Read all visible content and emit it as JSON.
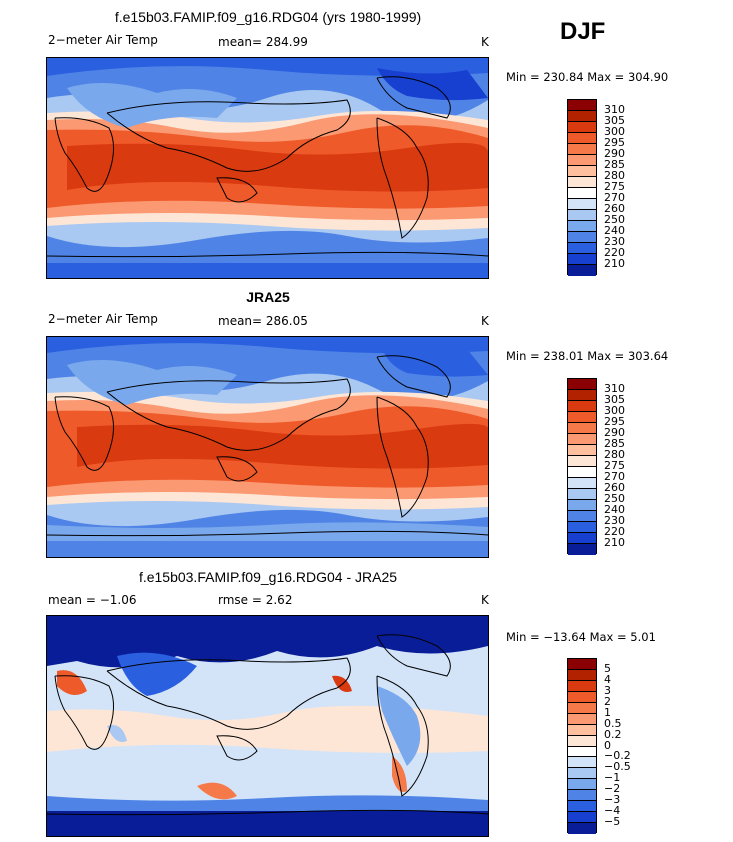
{
  "season": "DJF",
  "panels": [
    {
      "title": "f.e15b03.FAMIP.f09_g16.RDG04 (yrs 1980-1999)",
      "variable": "2−meter Air Temp",
      "stat": "mean=  284.99",
      "stat2": "",
      "units": "K",
      "minmax": "Min = 230.84 Max = 304.90",
      "scale": "abs"
    },
    {
      "title": "JRA25",
      "variable": "2−meter Air Temp",
      "stat": "mean=  286.05",
      "stat2": "",
      "units": "K",
      "minmax": "Min = 238.01 Max = 303.64",
      "scale": "abs"
    },
    {
      "title": "f.e15b03.FAMIP.f09_g16.RDG04 - JRA25",
      "variable": "",
      "stat": "mean =   −1.06",
      "stat2": "rmse =    2.62",
      "units": "K",
      "minmax": "Min = −13.64 Max =    5.01",
      "scale": "diff"
    }
  ],
  "colorbars": {
    "abs": {
      "labels": [
        "310",
        "305",
        "300",
        "295",
        "290",
        "285",
        "280",
        "275",
        "270",
        "260",
        "250",
        "240",
        "230",
        "220",
        "210"
      ],
      "colors": [
        "#8b0000",
        "#b22200",
        "#d93a10",
        "#ef5a2a",
        "#f6794a",
        "#fb9a72",
        "#fdbf9d",
        "#fde6d6",
        "#ffffff",
        "#d4e4f8",
        "#a9c8f2",
        "#7aa8ec",
        "#4f84e6",
        "#2a5fe0",
        "#173fd0",
        "#0a1d98"
      ]
    },
    "diff": {
      "labels": [
        "5",
        "4",
        "3",
        "2",
        "1",
        "0.5",
        "0.2",
        "0",
        "−0.2",
        "−0.5",
        "−1",
        "−2",
        "−3",
        "−4",
        "−5"
      ],
      "colors": [
        "#8b0000",
        "#b22200",
        "#d93a10",
        "#ef5a2a",
        "#f6794a",
        "#fb9a72",
        "#fdbf9d",
        "#fde6d6",
        "#ffffff",
        "#d4e4f8",
        "#a9c8f2",
        "#7aa8ec",
        "#4f84e6",
        "#2a5fe0",
        "#173fd0",
        "#0a1d98"
      ]
    }
  }
}
